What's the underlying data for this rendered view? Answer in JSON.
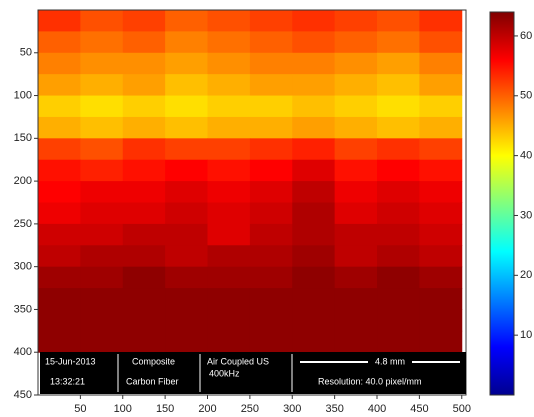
{
  "chart_data": {
    "type": "heatmap",
    "colormap": "jet",
    "x": [
      25,
      75,
      125,
      175,
      225,
      275,
      325,
      375,
      425,
      475
    ],
    "y": [
      12.5,
      37.5,
      62.5,
      87.5,
      112.5,
      137.5,
      162.5,
      187.5,
      212.5,
      237.5,
      262.5,
      287.5,
      312.5,
      337.5,
      362.5,
      387.5
    ],
    "values": [
      [
        53,
        51,
        52,
        50,
        51,
        52,
        53,
        52,
        51,
        53
      ],
      [
        50,
        49,
        50,
        48,
        49,
        50,
        51,
        50,
        49,
        51
      ],
      [
        48,
        47,
        47,
        46,
        47,
        48,
        48,
        47,
        46,
        48
      ],
      [
        46,
        45,
        46,
        44,
        45,
        46,
        46,
        45,
        44,
        46
      ],
      [
        43,
        42,
        43,
        42,
        43,
        43,
        44,
        43,
        42,
        43
      ],
      [
        45,
        44,
        45,
        44,
        45,
        45,
        46,
        45,
        44,
        45
      ],
      [
        52,
        51,
        53,
        52,
        52,
        53,
        54,
        52,
        53,
        52
      ],
      [
        55,
        54,
        55,
        56,
        55,
        56,
        58,
        55,
        56,
        55
      ],
      [
        56,
        57,
        57,
        58,
        57,
        58,
        60,
        57,
        58,
        57
      ],
      [
        57,
        58,
        58,
        59,
        58,
        59,
        61,
        58,
        59,
        58
      ],
      [
        59,
        59,
        60,
        60,
        58,
        60,
        61,
        60,
        60,
        59
      ],
      [
        60,
        61,
        61,
        60,
        61,
        61,
        62,
        60,
        61,
        60
      ],
      [
        62,
        62,
        63,
        62,
        62,
        62,
        63,
        62,
        63,
        62
      ],
      [
        63,
        63,
        63,
        63,
        63,
        63,
        63,
        63,
        63,
        63
      ],
      [
        63,
        63,
        63,
        63,
        63,
        63,
        63,
        63,
        63,
        63
      ],
      [
        63,
        63,
        63,
        63,
        63,
        63,
        63,
        63,
        63,
        63
      ]
    ],
    "xlim": [
      0,
      505
    ],
    "ylim": [
      0,
      450
    ],
    "xticks": [
      50,
      100,
      150,
      200,
      250,
      300,
      350,
      400,
      450,
      500
    ],
    "yticks": [
      50,
      100,
      150,
      200,
      250,
      300,
      350,
      400,
      450
    ],
    "colorbar": {
      "lim": [
        0,
        64
      ],
      "ticks": [
        10,
        20,
        30,
        40,
        50,
        60
      ]
    },
    "annotations": {
      "date": "15-Jun-2013",
      "time": "13:32:21",
      "material": "Composite",
      "material_type": "Carbon Fiber",
      "method": "Air Coupled US",
      "frequency": "400kHz",
      "scale": "4.8 mm",
      "resolution": "Resolution: 40.0 pixel/mm"
    }
  }
}
